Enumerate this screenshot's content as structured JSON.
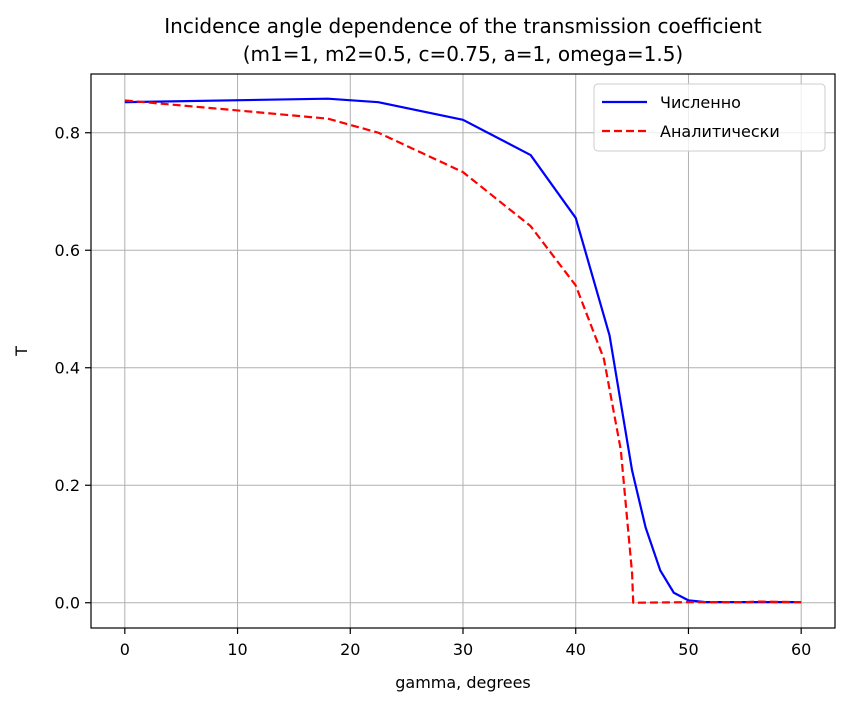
{
  "chart_data": {
    "type": "line",
    "title_line1": "Incidence angle dependence of the transmission coefficient",
    "title_line2": "(m1=1, m2=0.5, c=0.75, a=1, omega=1.5)",
    "xlabel": "gamma, degrees",
    "ylabel": "T",
    "xlim": [
      -3,
      63
    ],
    "ylim": [
      -0.043,
      0.9
    ],
    "xticks": [
      0,
      10,
      20,
      30,
      40,
      50,
      60
    ],
    "xtick_labels": [
      "0",
      "10",
      "20",
      "30",
      "40",
      "50",
      "60"
    ],
    "yticks": [
      0.0,
      0.2,
      0.4,
      0.6,
      0.8
    ],
    "ytick_labels": [
      "0.0",
      "0.2",
      "0.4",
      "0.6",
      "0.8"
    ],
    "grid": true,
    "legend_position": "top-right",
    "series": [
      {
        "name": "Численно",
        "color": "#0000ff",
        "style": "solid",
        "x": [
          0,
          18,
          22.5,
          30,
          36,
          40,
          43,
          45,
          46.2,
          47.5,
          48.7,
          50,
          51.5,
          53,
          55,
          57,
          60
        ],
        "y": [
          0.852,
          0.858,
          0.852,
          0.822,
          0.762,
          0.655,
          0.455,
          0.225,
          0.128,
          0.055,
          0.017,
          0.004,
          0.001,
          0.001,
          0.001,
          0.001,
          0.001
        ]
      },
      {
        "name": "Аналитически",
        "color": "#ff0000",
        "style": "dashed",
        "x": [
          0,
          10,
          18,
          22.5,
          30,
          36,
          40,
          42.5,
          44,
          45,
          45.1,
          50,
          55,
          56,
          60
        ],
        "y": [
          0.855,
          0.838,
          0.824,
          0.8,
          0.733,
          0.641,
          0.54,
          0.415,
          0.26,
          0.05,
          0.0,
          0.001,
          0.001,
          0.002,
          0.001
        ]
      }
    ]
  }
}
